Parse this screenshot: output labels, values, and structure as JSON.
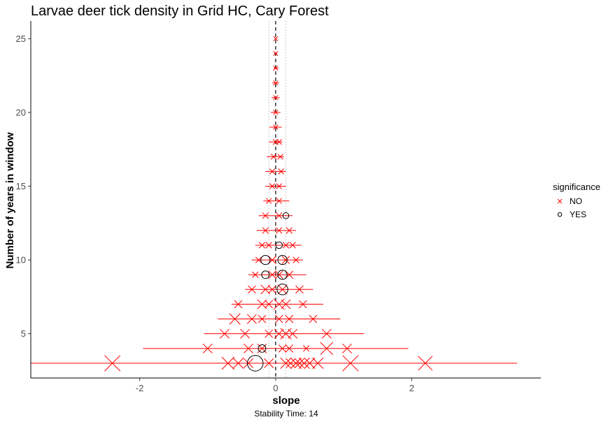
{
  "chart_data": {
    "type": "scatter",
    "title": "Larvae deer tick density in Grid HC, Cary Forest",
    "xlabel": "slope",
    "ylabel": "Number of years in window",
    "caption": "Stability Time: 14",
    "xlim": [
      -3.6,
      3.9
    ],
    "ylim": [
      2.0,
      26.2
    ],
    "x_ticks": [
      -2,
      0,
      2
    ],
    "y_ticks": [
      5,
      10,
      15,
      20,
      25
    ],
    "reference_line_x": 0,
    "reference_bands_x": [
      -0.1,
      0.15
    ],
    "grid": false,
    "legend": {
      "title": "significance",
      "position": "right",
      "entries": [
        {
          "label": "NO",
          "color": "#ff0000",
          "shape": "cross"
        },
        {
          "label": "YES",
          "color": "#000000",
          "shape": "circle"
        }
      ]
    },
    "ranges": [
      {
        "y": 3,
        "min": -3.6,
        "max": 3.55
      },
      {
        "y": 4,
        "min": -1.95,
        "max": 1.95
      },
      {
        "y": 5,
        "min": -1.05,
        "max": 1.3
      },
      {
        "y": 6,
        "min": -0.85,
        "max": 0.95
      },
      {
        "y": 7,
        "min": -0.65,
        "max": 0.7
      },
      {
        "y": 8,
        "min": -0.45,
        "max": 0.55
      },
      {
        "y": 9,
        "min": -0.4,
        "max": 0.45
      },
      {
        "y": 10,
        "min": -0.35,
        "max": 0.4
      },
      {
        "y": 11,
        "min": -0.3,
        "max": 0.38
      },
      {
        "y": 12,
        "min": -0.28,
        "max": 0.3
      },
      {
        "y": 13,
        "min": -0.25,
        "max": 0.25
      },
      {
        "y": 14,
        "min": -0.18,
        "max": 0.2
      },
      {
        "y": 15,
        "min": -0.15,
        "max": 0.15
      },
      {
        "y": 16,
        "min": -0.15,
        "max": 0.15
      },
      {
        "y": 17,
        "min": -0.13,
        "max": 0.12
      },
      {
        "y": 18,
        "min": -0.1,
        "max": 0.1
      },
      {
        "y": 19,
        "min": -0.09,
        "max": 0.09
      },
      {
        "y": 20,
        "min": -0.07,
        "max": 0.07
      },
      {
        "y": 21,
        "min": -0.06,
        "max": 0.06
      },
      {
        "y": 22,
        "min": -0.05,
        "max": 0.05
      },
      {
        "y": 23,
        "min": -0.03,
        "max": 0.04
      },
      {
        "y": 24,
        "min": -0.02,
        "max": 0.02
      },
      {
        "y": 25,
        "min": -0.01,
        "max": 0.01
      }
    ],
    "series": [
      {
        "name": "NO",
        "color": "#ff0000",
        "points": [
          {
            "x": -2.4,
            "y": 3,
            "size": 4
          },
          {
            "x": -0.7,
            "y": 3,
            "size": 3
          },
          {
            "x": -0.55,
            "y": 3,
            "size": 2.5
          },
          {
            "x": -0.4,
            "y": 3,
            "size": 2
          },
          {
            "x": -0.1,
            "y": 3,
            "size": 2
          },
          {
            "x": 0.15,
            "y": 3,
            "size": 2.5
          },
          {
            "x": 0.22,
            "y": 3,
            "size": 2
          },
          {
            "x": 0.3,
            "y": 3,
            "size": 2.5
          },
          {
            "x": 0.35,
            "y": 3,
            "size": 2
          },
          {
            "x": 0.42,
            "y": 3,
            "size": 2.5
          },
          {
            "x": 0.5,
            "y": 3,
            "size": 2.5
          },
          {
            "x": 0.62,
            "y": 3,
            "size": 2.5
          },
          {
            "x": 1.1,
            "y": 3,
            "size": 4
          },
          {
            "x": 2.2,
            "y": 3,
            "size": 3.5
          },
          {
            "x": -1.0,
            "y": 4,
            "size": 2
          },
          {
            "x": -0.4,
            "y": 4,
            "size": 2
          },
          {
            "x": -0.2,
            "y": 4,
            "size": 2
          },
          {
            "x": 0.1,
            "y": 4,
            "size": 1.5
          },
          {
            "x": 0.2,
            "y": 4,
            "size": 1.5
          },
          {
            "x": 0.45,
            "y": 4,
            "size": 1
          },
          {
            "x": 0.75,
            "y": 4,
            "size": 3
          },
          {
            "x": 1.05,
            "y": 4,
            "size": 2
          },
          {
            "x": -0.75,
            "y": 5,
            "size": 2
          },
          {
            "x": -0.45,
            "y": 5,
            "size": 2
          },
          {
            "x": -0.1,
            "y": 5,
            "size": 1.5
          },
          {
            "x": 0.05,
            "y": 5,
            "size": 2
          },
          {
            "x": 0.15,
            "y": 5,
            "size": 2.5
          },
          {
            "x": 0.25,
            "y": 5,
            "size": 2
          },
          {
            "x": 0.75,
            "y": 5,
            "size": 2
          },
          {
            "x": -0.6,
            "y": 6,
            "size": 2.5
          },
          {
            "x": -0.35,
            "y": 6,
            "size": 2
          },
          {
            "x": -0.2,
            "y": 6,
            "size": 1.5
          },
          {
            "x": 0.05,
            "y": 6,
            "size": 1.5
          },
          {
            "x": 0.2,
            "y": 6,
            "size": 1.5
          },
          {
            "x": 0.55,
            "y": 6,
            "size": 1.5
          },
          {
            "x": -0.55,
            "y": 7,
            "size": 1.5
          },
          {
            "x": -0.2,
            "y": 7,
            "size": 2
          },
          {
            "x": -0.1,
            "y": 7,
            "size": 1.5
          },
          {
            "x": 0.05,
            "y": 7,
            "size": 2.5
          },
          {
            "x": 0.15,
            "y": 7,
            "size": 2
          },
          {
            "x": 0.4,
            "y": 7,
            "size": 1.5
          },
          {
            "x": -0.35,
            "y": 8,
            "size": 1.5
          },
          {
            "x": -0.15,
            "y": 8,
            "size": 2
          },
          {
            "x": -0.05,
            "y": 8,
            "size": 1.5
          },
          {
            "x": 0.1,
            "y": 8,
            "size": 2
          },
          {
            "x": 0.35,
            "y": 8,
            "size": 1.5
          },
          {
            "x": -0.3,
            "y": 9,
            "size": 1
          },
          {
            "x": -0.05,
            "y": 9,
            "size": 1.5
          },
          {
            "x": 0.05,
            "y": 9,
            "size": 1.5
          },
          {
            "x": 0.2,
            "y": 9,
            "size": 1.5
          },
          {
            "x": -0.25,
            "y": 10,
            "size": 1
          },
          {
            "x": -0.05,
            "y": 10,
            "size": 1.5
          },
          {
            "x": 0.15,
            "y": 10,
            "size": 1.5
          },
          {
            "x": 0.3,
            "y": 10,
            "size": 1
          },
          {
            "x": -0.2,
            "y": 11,
            "size": 1
          },
          {
            "x": -0.1,
            "y": 11,
            "size": 1
          },
          {
            "x": 0.15,
            "y": 11,
            "size": 1
          },
          {
            "x": 0.25,
            "y": 11,
            "size": 1
          },
          {
            "x": -0.15,
            "y": 12,
            "size": 1
          },
          {
            "x": 0.05,
            "y": 12,
            "size": 1
          },
          {
            "x": 0.2,
            "y": 12,
            "size": 1
          },
          {
            "x": -0.15,
            "y": 13,
            "size": 1
          },
          {
            "x": 0.05,
            "y": 13,
            "size": 1
          },
          {
            "x": -0.1,
            "y": 14,
            "size": 0.8
          },
          {
            "x": 0.05,
            "y": 14,
            "size": 0.8
          },
          {
            "x": -0.05,
            "y": 15,
            "size": 0.8
          },
          {
            "x": 0.05,
            "y": 15,
            "size": 0.8
          },
          {
            "x": -0.05,
            "y": 16,
            "size": 0.8
          },
          {
            "x": 0.08,
            "y": 16,
            "size": 0.8
          },
          {
            "x": -0.03,
            "y": 17,
            "size": 0.8
          },
          {
            "x": 0.07,
            "y": 17,
            "size": 0.8
          },
          {
            "x": 0.0,
            "y": 18,
            "size": 0.8
          },
          {
            "x": 0.05,
            "y": 18,
            "size": 0.8
          },
          {
            "x": 0.0,
            "y": 19,
            "size": 0.6
          },
          {
            "x": 0.0,
            "y": 20,
            "size": 0.6
          },
          {
            "x": 0.0,
            "y": 21,
            "size": 0.6
          },
          {
            "x": 0.0,
            "y": 22,
            "size": 0.6
          },
          {
            "x": 0.0,
            "y": 23,
            "size": 0.5
          },
          {
            "x": 0.0,
            "y": 24,
            "size": 0.5
          },
          {
            "x": 0.0,
            "y": 25,
            "size": 0.5
          }
        ]
      },
      {
        "name": "YES",
        "color": "#000000",
        "points": [
          {
            "x": -0.3,
            "y": 3,
            "size": 4
          },
          {
            "x": -0.2,
            "y": 4,
            "size": 1.5
          },
          {
            "x": 0.1,
            "y": 8,
            "size": 2.5
          },
          {
            "x": -0.15,
            "y": 9,
            "size": 1.5
          },
          {
            "x": 0.1,
            "y": 9,
            "size": 2
          },
          {
            "x": -0.15,
            "y": 10,
            "size": 2
          },
          {
            "x": 0.1,
            "y": 10,
            "size": 2
          },
          {
            "x": 0.05,
            "y": 11,
            "size": 1.2
          },
          {
            "x": 0.15,
            "y": 13,
            "size": 1
          }
        ]
      }
    ]
  }
}
